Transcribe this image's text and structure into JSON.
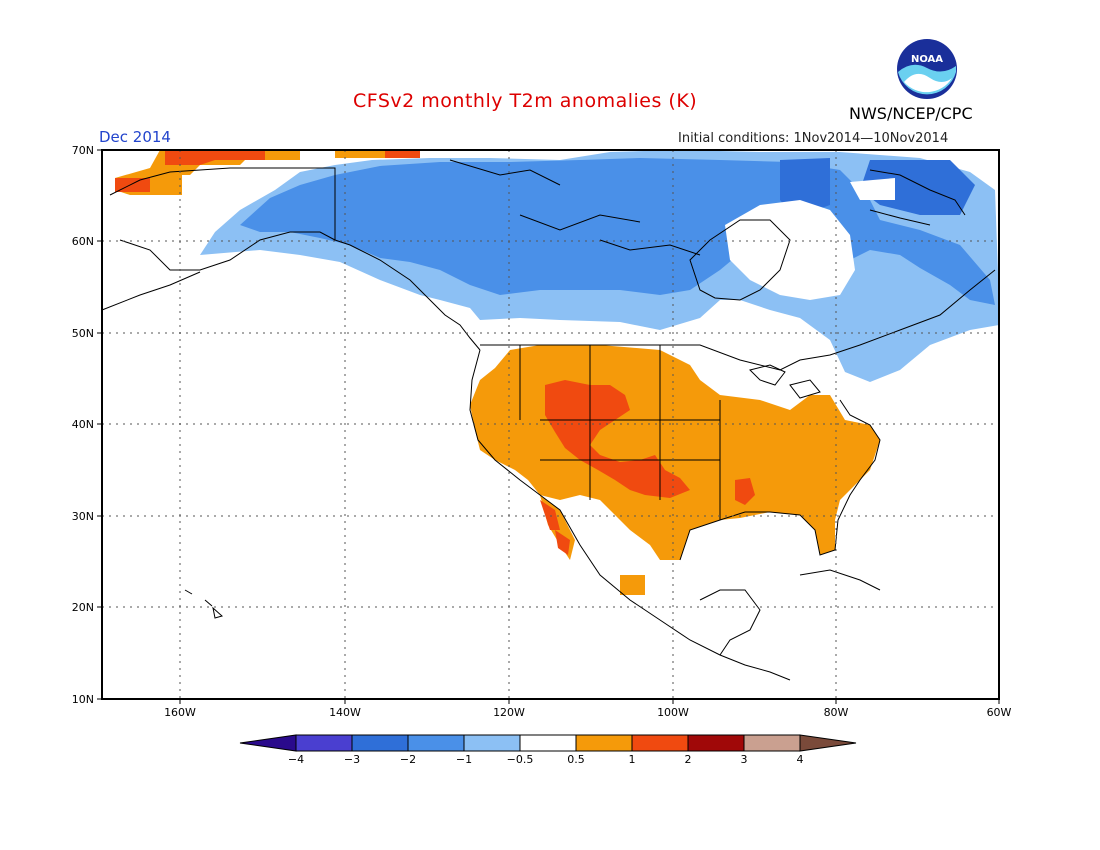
{
  "header": {
    "title": "CFSv2 monthly T2m anomalies (K)",
    "month": "Dec 2014",
    "initial_conditions": "Initial conditions: 1Nov2014—10Nov2014",
    "agency": "NWS/NCEP/CPC",
    "logo_text": "NOAA"
  },
  "map": {
    "region": "North America",
    "projection": "lat-lon",
    "lon_range": [
      -170,
      -60
    ],
    "lat_range": [
      10,
      70
    ],
    "lat_labels": [
      "70N",
      "60N",
      "50N",
      "40N",
      "30N",
      "20N",
      "10N"
    ],
    "lon_labels": [
      "160W",
      "140W",
      "120W",
      "100W",
      "80W",
      "60W"
    ],
    "gridlines": "dotted"
  },
  "colorbar": {
    "labels": [
      "−4",
      "−3",
      "−2",
      "−1",
      "−0.5",
      "0.5",
      "1",
      "2",
      "3",
      "4"
    ],
    "colors": [
      "#2a0a8c",
      "#4a3fd0",
      "#2f6fd8",
      "#4a90e8",
      "#8cc0f4",
      "#ffffff",
      "#f59a0a",
      "#f04a10",
      "#a00808",
      "#caa090",
      "#7a4a3a"
    ]
  },
  "anomaly_regions": [
    {
      "name": "alaska-canada-cold",
      "category": "-1"
    },
    {
      "name": "canada-moderate-cold",
      "category": "-2"
    },
    {
      "name": "southern-canada-weak-cold",
      "category": "-0.5"
    },
    {
      "name": "us-warm",
      "category": "0.5"
    },
    {
      "name": "rockies-warm",
      "category": "1"
    },
    {
      "name": "arctic-coast-warm",
      "category": "0.5"
    }
  ]
}
